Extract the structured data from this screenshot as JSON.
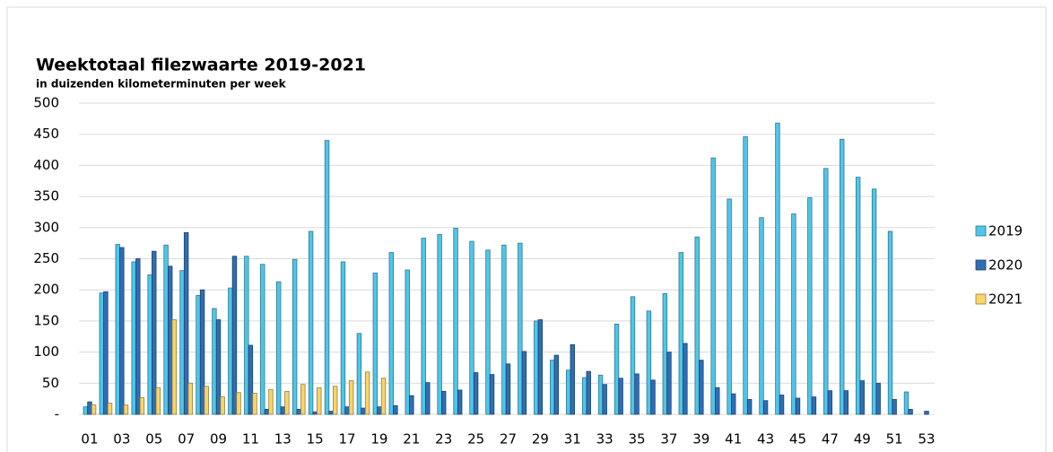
{
  "chart_data": {
    "type": "bar",
    "title": "Weektotaal filezwaarte 2019-2021",
    "subtitle": "in duizenden kilometerminuten per week",
    "categories": [
      "01",
      null,
      "03",
      null,
      "05",
      null,
      "07",
      null,
      "09",
      null,
      "11",
      null,
      "13",
      null,
      "15",
      null,
      "17",
      null,
      "19",
      null,
      "21",
      null,
      "23",
      null,
      "25",
      null,
      "27",
      null,
      "29",
      null,
      "31",
      null,
      "33",
      null,
      "35",
      null,
      "37",
      null,
      "39",
      null,
      "41",
      null,
      "43",
      null,
      "45",
      null,
      "47",
      null,
      "49",
      null,
      "51",
      null,
      "53"
    ],
    "series": [
      {
        "name": "2019",
        "color": "#4fc6ea",
        "values": [
          12,
          195,
          273,
          245,
          224,
          272,
          231,
          191,
          170,
          203,
          254,
          241,
          213,
          249,
          294,
          440,
          245,
          130,
          227,
          260,
          232,
          283,
          289,
          299,
          278,
          264,
          272,
          275,
          150,
          87,
          71,
          59,
          63,
          145,
          189,
          166,
          194,
          260,
          285,
          412,
          346,
          446,
          316,
          468,
          322,
          348,
          395,
          442,
          381,
          362,
          294,
          36,
          null
        ]
      },
      {
        "name": "2020",
        "color": "#2f6eb5",
        "values": [
          20,
          197,
          268,
          250,
          262,
          238,
          292,
          200,
          152,
          254,
          111,
          8,
          12,
          8,
          4,
          5,
          12,
          10,
          12,
          14,
          30,
          51,
          37,
          39,
          67,
          64,
          81,
          101,
          152,
          95,
          112,
          69,
          48,
          58,
          65,
          55,
          100,
          114,
          87,
          43,
          33,
          24,
          22,
          31,
          26,
          28,
          38,
          38,
          54,
          50,
          24,
          8,
          5
        ]
      },
      {
        "name": "2021",
        "color": "#f7d56a",
        "values": [
          15,
          18,
          15,
          27,
          43,
          152,
          50,
          45,
          28,
          35,
          34,
          40,
          37,
          48,
          43,
          45,
          54,
          68,
          58,
          null,
          null,
          null,
          null,
          null,
          null,
          null,
          null,
          null,
          null,
          null,
          null,
          null,
          null,
          null,
          null,
          null,
          null,
          null,
          null,
          null,
          null,
          null,
          null,
          null,
          null,
          null,
          null,
          null,
          null,
          null,
          null,
          null,
          null
        ]
      }
    ],
    "ylim": [
      0,
      500
    ],
    "yticks": [
      {
        "value": 0,
        "label": "-"
      },
      50,
      100,
      150,
      200,
      250,
      300,
      350,
      400,
      450,
      500
    ],
    "grid": true
  }
}
